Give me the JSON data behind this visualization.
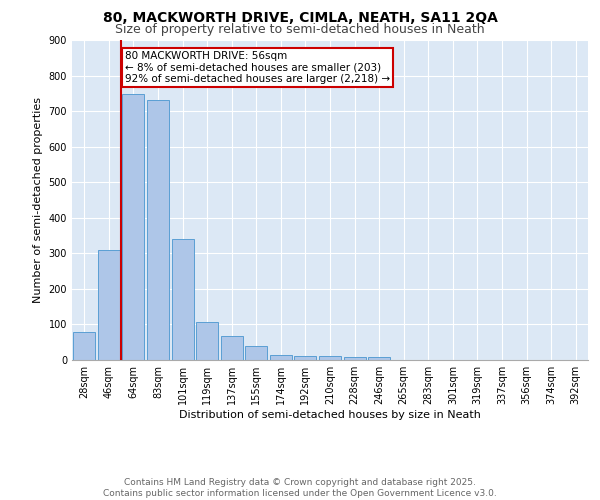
{
  "title_line1": "80, MACKWORTH DRIVE, CIMLA, NEATH, SA11 2QA",
  "title_line2": "Size of property relative to semi-detached houses in Neath",
  "xlabel": "Distribution of semi-detached houses by size in Neath",
  "ylabel": "Number of semi-detached properties",
  "categories": [
    "28sqm",
    "46sqm",
    "64sqm",
    "83sqm",
    "101sqm",
    "119sqm",
    "137sqm",
    "155sqm",
    "174sqm",
    "192sqm",
    "210sqm",
    "228sqm",
    "246sqm",
    "265sqm",
    "283sqm",
    "301sqm",
    "319sqm",
    "337sqm",
    "356sqm",
    "374sqm",
    "392sqm"
  ],
  "values": [
    80,
    308,
    748,
    730,
    340,
    108,
    68,
    38,
    15,
    12,
    12,
    8,
    8,
    0,
    0,
    0,
    0,
    0,
    0,
    0,
    0
  ],
  "bar_color": "#aec6e8",
  "bar_edge_color": "#5a9fd4",
  "vline_x_index": 1,
  "vline_color": "#cc0000",
  "annotation_text": "80 MACKWORTH DRIVE: 56sqm\n← 8% of semi-detached houses are smaller (203)\n92% of semi-detached houses are larger (2,218) →",
  "annotation_box_color": "#ffffff",
  "annotation_box_edge": "#cc0000",
  "ylim": [
    0,
    900
  ],
  "yticks": [
    0,
    100,
    200,
    300,
    400,
    500,
    600,
    700,
    800,
    900
  ],
  "background_color": "#dce8f5",
  "footer_text": "Contains HM Land Registry data © Crown copyright and database right 2025.\nContains public sector information licensed under the Open Government Licence v3.0.",
  "title_fontsize": 10,
  "subtitle_fontsize": 9,
  "axis_label_fontsize": 8,
  "tick_fontsize": 7,
  "footer_fontsize": 6.5,
  "annotation_fontsize": 7.5
}
